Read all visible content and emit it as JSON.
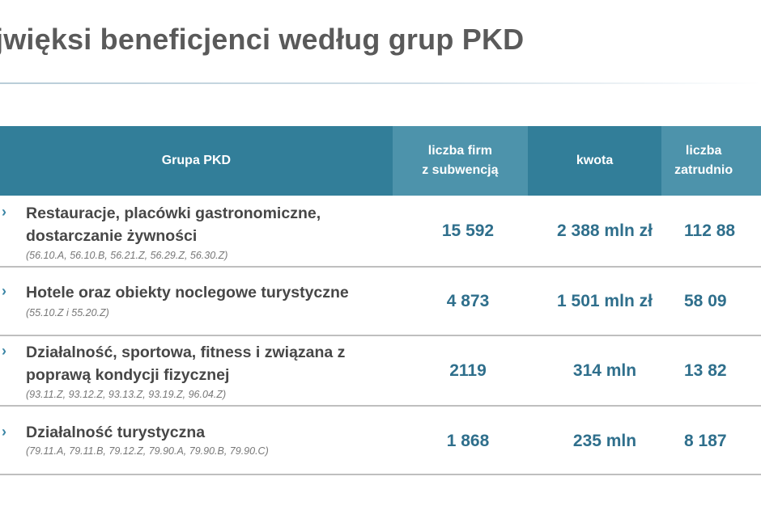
{
  "title": "jwięksi beneficjenci według grup PKD",
  "header": {
    "group": "Grupa PKD",
    "firms": "liczba firm\nz subwencją",
    "amount": "kwota",
    "employ": "liczba\nzatrudnio"
  },
  "rows": [
    {
      "name": "Restauracje, placówki gastronomiczne,\ndostarczanie żywności",
      "codes": "(56.10.A, 56.10.B, 56.21.Z, 56.29.Z, 56.30.Z)",
      "firms": "15 592",
      "amount": "2 388 mln zł",
      "employ": "112 88"
    },
    {
      "name": "Hotele oraz obiekty noclegowe turystyczne",
      "codes": "(55.10.Z i 55.20.Z)",
      "firms": "4 873",
      "amount": "1 501 mln zł",
      "employ": "58 09"
    },
    {
      "name": "Działalność, sportowa, fitness i związana z\npoprawą kondycji fizycznej",
      "codes": "(93.11.Z, 93.12.Z, 93.13.Z, 93.19.Z, 96.04.Z)",
      "firms": "2119",
      "amount": "314 mln",
      "employ": "13 82"
    },
    {
      "name": "Działalność turystyczna",
      "codes": "(79.11.A, 79.11.B, 79.12.Z, 79.90.A, 79.90.B, 79.90.C)",
      "firms": "1 868",
      "amount": "235 mln",
      "employ": "8 187"
    }
  ],
  "chevron": "›",
  "colors": {
    "header_dark": "#327e99",
    "header_light": "#4d93ab",
    "value_text": "#2f6f8c",
    "title_text": "#5a5a5a"
  }
}
